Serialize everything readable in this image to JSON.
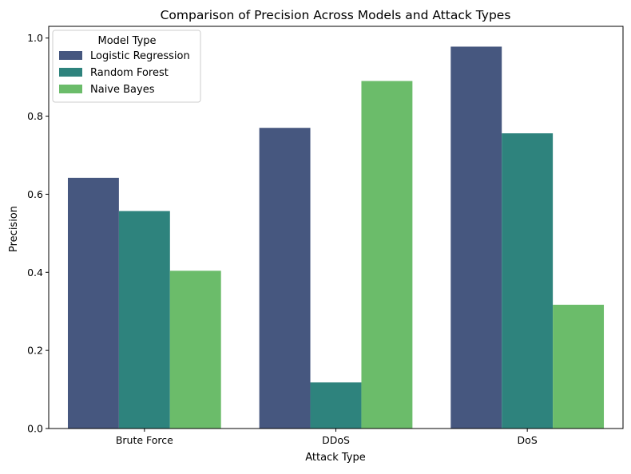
{
  "chart_data": {
    "type": "bar",
    "title": "Comparison of Precision Across Models and Attack Types",
    "xlabel": "Attack Type",
    "ylabel": "Precision",
    "categories": [
      "Brute Force",
      "DDoS",
      "DoS"
    ],
    "series": [
      {
        "name": "Logistic Regression",
        "color": "#46577f",
        "values": [
          0.642,
          0.77,
          0.978
        ]
      },
      {
        "name": "Random Forest",
        "color": "#2e837d",
        "values": [
          0.557,
          0.118,
          0.756
        ]
      },
      {
        "name": "Naive Bayes",
        "color": "#6bbc6a",
        "values": [
          0.404,
          0.89,
          0.317
        ]
      }
    ],
    "ylim": [
      0,
      1.03
    ],
    "yticks": [
      0.0,
      0.2,
      0.4,
      0.6,
      0.8,
      1.0
    ],
    "ytick_labels": [
      "0.0",
      "0.2",
      "0.4",
      "0.6",
      "0.8",
      "1.0"
    ],
    "legend": {
      "title": "Model Type",
      "position": "top-left"
    },
    "grid": false
  }
}
